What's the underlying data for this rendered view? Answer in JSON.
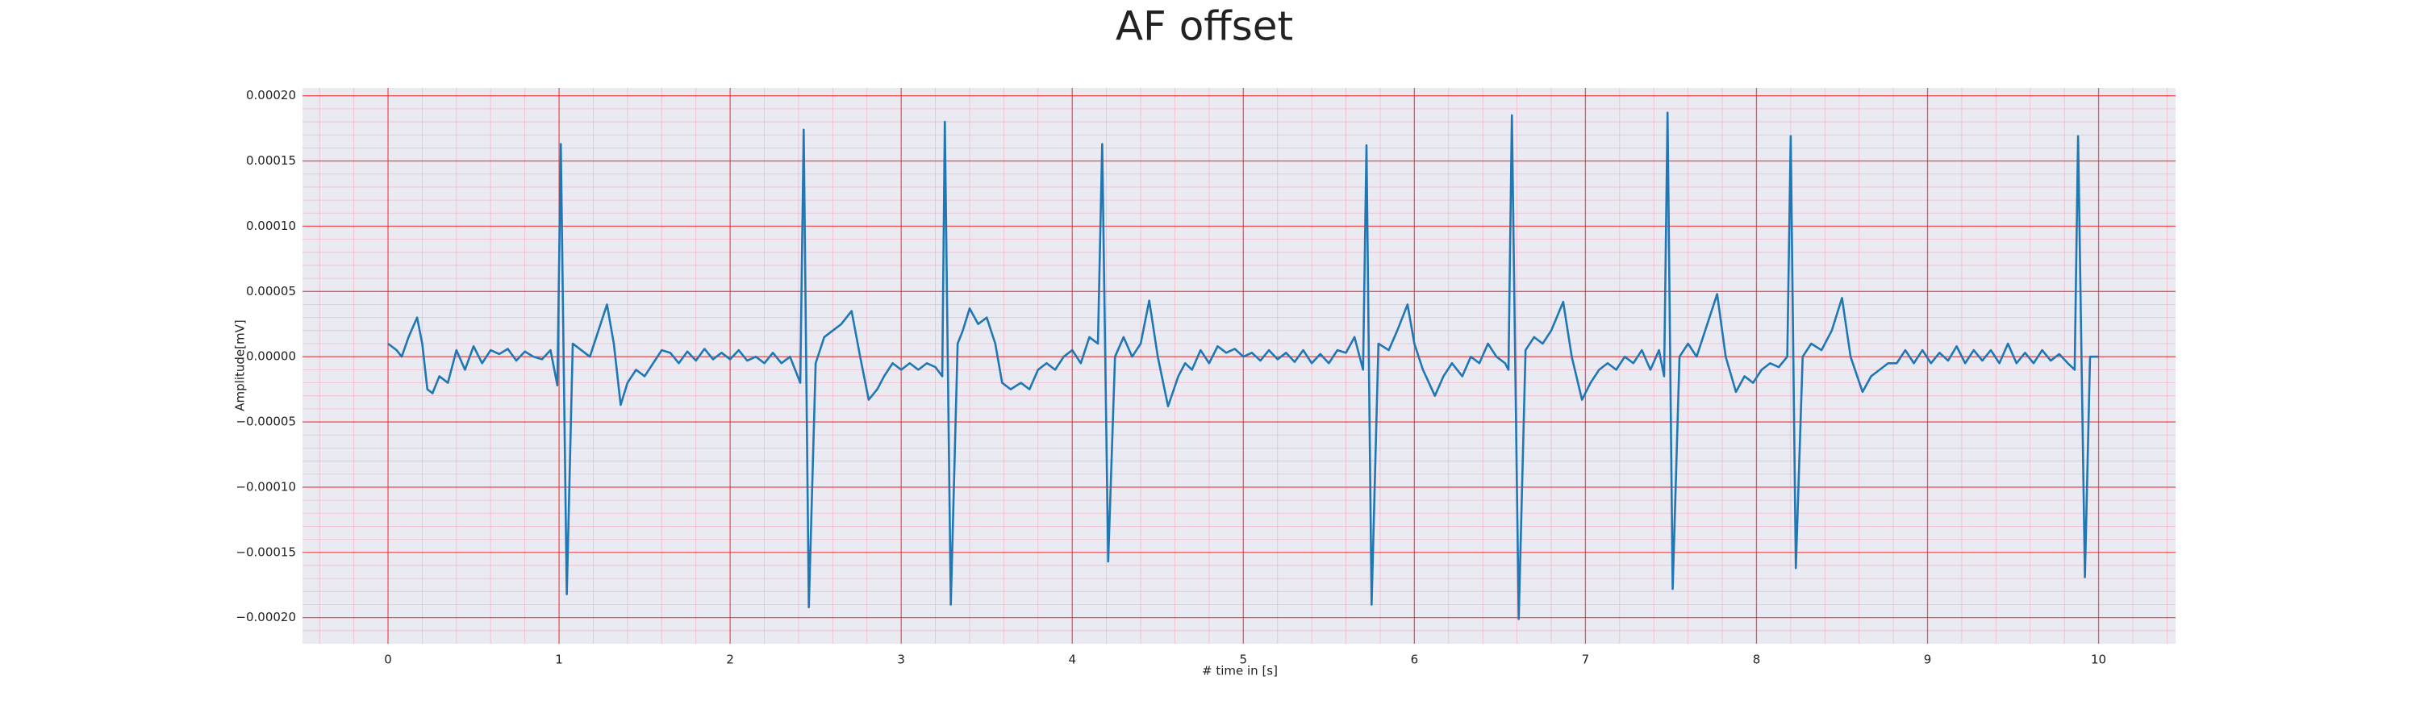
{
  "chart_data": {
    "type": "line",
    "title": "AF offset",
    "xlabel": "# time in [s]",
    "ylabel": "Amplitude[mV]",
    "color": "#1f77b4",
    "grid": true,
    "minor_grid": true,
    "xlim": [
      -0.5,
      10.45
    ],
    "ylim": [
      -0.00022,
      0.000206
    ],
    "xticks": [
      0,
      1,
      2,
      3,
      4,
      5,
      6,
      7,
      8,
      9,
      10
    ],
    "yticks": [
      {
        "value": -0.0002,
        "label": "−0.00020"
      },
      {
        "value": -0.00015,
        "label": "−0.00015"
      },
      {
        "value": -0.0001,
        "label": "−0.00010"
      },
      {
        "value": -5e-05,
        "label": "−0.00005"
      },
      {
        "value": 0,
        "label": "0.00000"
      },
      {
        "value": 5e-05,
        "label": "0.00005"
      },
      {
        "value": 0.0001,
        "label": "0.00010"
      },
      {
        "value": 0.00015,
        "label": "0.00015"
      },
      {
        "value": 0.0002,
        "label": "0.00020"
      }
    ],
    "x": [
      0,
      0.05,
      0.08,
      0.12,
      0.17,
      0.2,
      0.23,
      0.26,
      0.3,
      0.35,
      0.4,
      0.45,
      0.5,
      0.55,
      0.6,
      0.65,
      0.7,
      0.75,
      0.8,
      0.85,
      0.9,
      0.95,
      0.99,
      1.01,
      1.045,
      1.08,
      1.13,
      1.18,
      1.23,
      1.28,
      1.32,
      1.36,
      1.4,
      1.45,
      1.5,
      1.55,
      1.6,
      1.65,
      1.7,
      1.75,
      1.8,
      1.85,
      1.9,
      1.95,
      2.0,
      2.05,
      2.1,
      2.15,
      2.2,
      2.25,
      2.3,
      2.35,
      2.41,
      2.43,
      2.46,
      2.5,
      2.55,
      2.6,
      2.65,
      2.71,
      2.76,
      2.81,
      2.86,
      2.9,
      2.95,
      3.0,
      3.05,
      3.1,
      3.15,
      3.2,
      3.24,
      3.255,
      3.29,
      3.33,
      3.36,
      3.4,
      3.45,
      3.5,
      3.55,
      3.59,
      3.64,
      3.7,
      3.75,
      3.8,
      3.85,
      3.9,
      3.95,
      4.0,
      4.05,
      4.1,
      4.15,
      4.175,
      4.21,
      4.25,
      4.3,
      4.35,
      4.4,
      4.45,
      4.5,
      4.56,
      4.62,
      4.66,
      4.7,
      4.75,
      4.8,
      4.85,
      4.9,
      4.95,
      5.0,
      5.05,
      5.1,
      5.15,
      5.2,
      5.25,
      5.3,
      5.35,
      5.4,
      5.45,
      5.5,
      5.55,
      5.6,
      5.65,
      5.7,
      5.72,
      5.75,
      5.79,
      5.85,
      5.9,
      5.96,
      6.0,
      6.05,
      6.12,
      6.17,
      6.22,
      6.28,
      6.33,
      6.38,
      6.43,
      6.48,
      6.53,
      6.55,
      6.57,
      6.61,
      6.65,
      6.7,
      6.75,
      6.8,
      6.87,
      6.92,
      6.98,
      7.03,
      7.08,
      7.13,
      7.18,
      7.23,
      7.28,
      7.33,
      7.38,
      7.43,
      7.46,
      7.48,
      7.51,
      7.55,
      7.6,
      7.65,
      7.7,
      7.77,
      7.82,
      7.88,
      7.93,
      7.98,
      8.03,
      8.08,
      8.13,
      8.18,
      8.2,
      8.23,
      8.27,
      8.32,
      8.38,
      8.44,
      8.5,
      8.55,
      8.62,
      8.67,
      8.72,
      8.77,
      8.82,
      8.87,
      8.92,
      8.97,
      9.02,
      9.07,
      9.12,
      9.17,
      9.22,
      9.27,
      9.32,
      9.37,
      9.42,
      9.47,
      9.52,
      9.57,
      9.62,
      9.67,
      9.72,
      9.77,
      9.82,
      9.86,
      9.88,
      9.92,
      9.95,
      10.0
    ],
    "values": [
      1e-05,
      5e-06,
      0,
      1.5e-05,
      3e-05,
      1e-05,
      -2.5e-05,
      -2.8e-05,
      -1.5e-05,
      -2e-05,
      5e-06,
      -1e-05,
      8e-06,
      -5e-06,
      5e-06,
      2e-06,
      6e-06,
      -3e-06,
      4e-06,
      0,
      -2e-06,
      5e-06,
      -2.2e-05,
      0.000163,
      -0.000182,
      1e-05,
      5e-06,
      0,
      2e-05,
      4e-05,
      1e-05,
      -3.7e-05,
      -2e-05,
      -1e-05,
      -1.5e-05,
      -5e-06,
      5e-06,
      3e-06,
      -5e-06,
      4e-06,
      -3e-06,
      6e-06,
      -2e-06,
      3e-06,
      -2e-06,
      5e-06,
      -3e-06,
      0,
      -5e-06,
      3e-06,
      -5e-06,
      0,
      -2e-05,
      0.000174,
      -0.000192,
      -5e-06,
      1.5e-05,
      2e-05,
      2.5e-05,
      3.5e-05,
      0,
      -3.3e-05,
      -2.5e-05,
      -1.5e-05,
      -5e-06,
      -1e-05,
      -5e-06,
      -1e-05,
      -5e-06,
      -8e-06,
      -1.5e-05,
      0.00018,
      -0.00019,
      1e-05,
      2e-05,
      3.7e-05,
      2.5e-05,
      3e-05,
      1e-05,
      -2e-05,
      -2.5e-05,
      -2e-05,
      -2.5e-05,
      -1e-05,
      -5e-06,
      -1e-05,
      0,
      5e-06,
      -5e-06,
      1.5e-05,
      1e-05,
      0.000163,
      -0.000157,
      0,
      1.5e-05,
      0,
      1e-05,
      4.3e-05,
      0,
      -3.8e-05,
      -1.5e-05,
      -5e-06,
      -1e-05,
      5e-06,
      -5e-06,
      8e-06,
      3e-06,
      6e-06,
      0,
      3e-06,
      -3e-06,
      5e-06,
      -2e-06,
      3e-06,
      -4e-06,
      5e-06,
      -5e-06,
      2e-06,
      -5e-06,
      5e-06,
      3e-06,
      1.5e-05,
      -1e-05,
      0.000162,
      -0.00019,
      1e-05,
      5e-06,
      2e-05,
      4e-05,
      1e-05,
      -1e-05,
      -3e-05,
      -1.5e-05,
      -5e-06,
      -1.5e-05,
      0,
      -5e-06,
      1e-05,
      0,
      -5e-06,
      -1e-05,
      0.000185,
      -0.000201,
      5e-06,
      1.5e-05,
      1e-05,
      2e-05,
      4.2e-05,
      0,
      -3.3e-05,
      -2e-05,
      -1e-05,
      -5e-06,
      -1e-05,
      0,
      -5e-06,
      5e-06,
      -1e-05,
      5e-06,
      -1.5e-05,
      0.000187,
      -0.000178,
      0,
      1e-05,
      0,
      2e-05,
      4.8e-05,
      0,
      -2.7e-05,
      -1.5e-05,
      -2e-05,
      -1e-05,
      -5e-06,
      -8e-06,
      0,
      0.000169,
      -0.000162,
      0,
      1e-05,
      5e-06,
      2e-05,
      4.5e-05,
      0,
      -2.7e-05,
      -1.5e-05,
      -1e-05,
      -5e-06,
      -5e-06,
      5e-06,
      -5e-06,
      5e-06,
      -5e-06,
      3e-06,
      -3e-06,
      8e-06,
      -5e-06,
      5e-06,
      -3e-06,
      5e-06,
      -5e-06,
      1e-05,
      -5e-06,
      3e-06,
      -5e-06,
      5e-06,
      -3e-06,
      2e-06,
      -5e-06,
      -1e-05,
      0.000169,
      -0.000169,
      0,
      0
    ]
  }
}
